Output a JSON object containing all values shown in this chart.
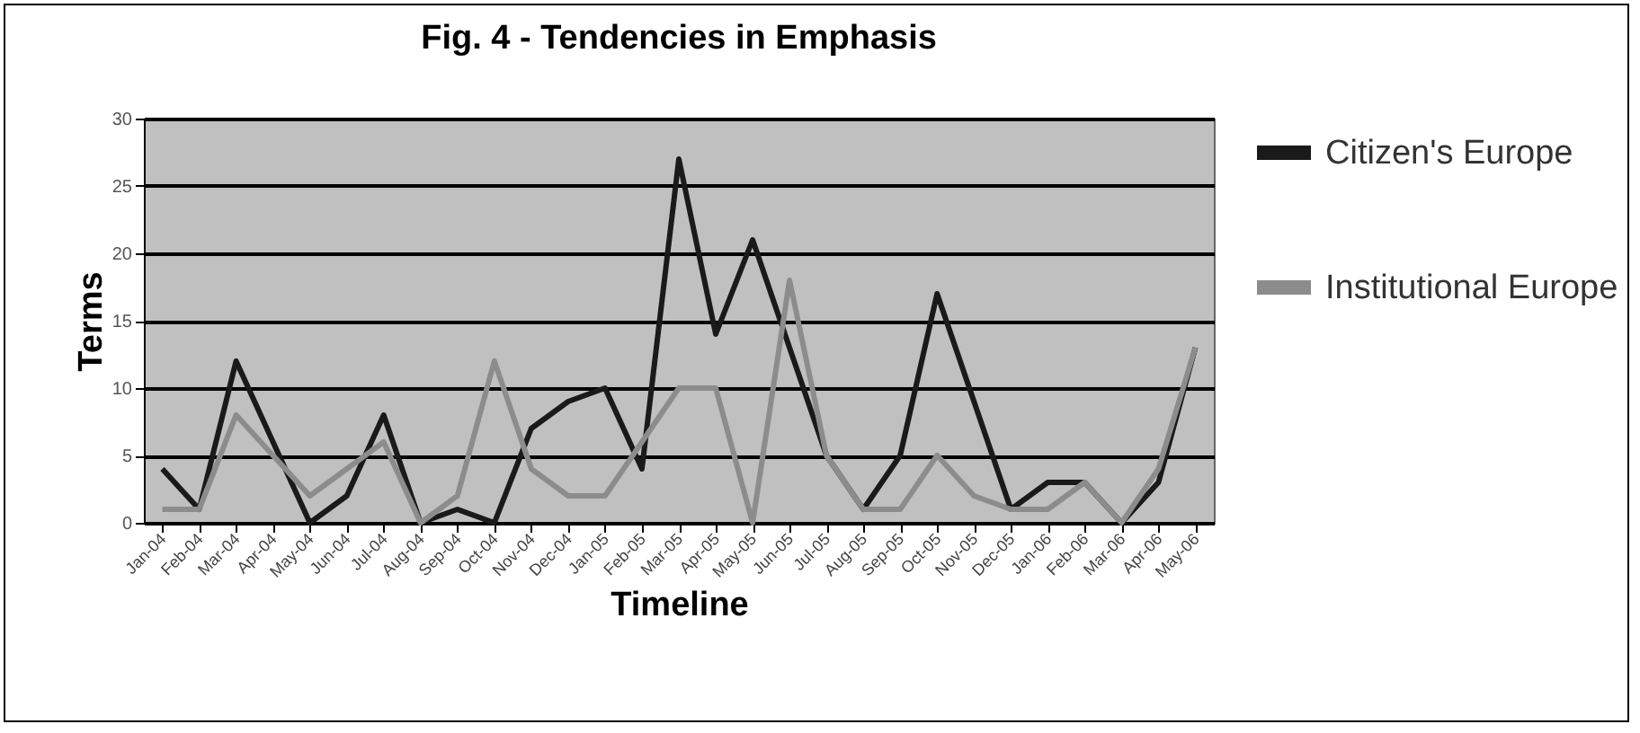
{
  "chart_data": {
    "type": "line",
    "title": "Fig. 4 - Tendencies in Emphasis",
    "xlabel": "Timeline",
    "ylabel": "Terms",
    "categories": [
      "Jan-04",
      "Feb-04",
      "Mar-04",
      "Apr-04",
      "May-04",
      "Jun-04",
      "Jul-04",
      "Aug-04",
      "Sep-04",
      "Oct-04",
      "Nov-04",
      "Dec-04",
      "Jan-05",
      "Feb-05",
      "Mar-05",
      "Apr-05",
      "May-05",
      "Jun-05",
      "Jul-05",
      "Aug-05",
      "Sep-05",
      "Oct-05",
      "Nov-05",
      "Dec-05",
      "Jan-06",
      "Feb-06",
      "Mar-06",
      "Apr-06",
      "May-06"
    ],
    "series": [
      {
        "name": "Citizen's Europe",
        "color": "#1a1a1a",
        "values": [
          4,
          1,
          12,
          6,
          0,
          2,
          8,
          0,
          1,
          0,
          7,
          9,
          10,
          4,
          27,
          14,
          21,
          13,
          5,
          1,
          5,
          17,
          9,
          1,
          3,
          3,
          0,
          3,
          13
        ]
      },
      {
        "name": "Institutional Europe",
        "color": "#8c8c8c",
        "values": [
          1,
          1,
          8,
          5,
          2,
          4,
          6,
          0,
          2,
          12,
          4,
          2,
          2,
          6,
          10,
          10,
          0,
          18,
          5,
          1,
          1,
          5,
          2,
          1,
          1,
          3,
          0,
          4,
          13
        ]
      }
    ],
    "ylim": [
      0,
      30
    ],
    "yticks": [
      0,
      5,
      10,
      15,
      20,
      25,
      30
    ],
    "grid": "y",
    "legend": "right",
    "marker": "none",
    "line_style": "solid"
  }
}
